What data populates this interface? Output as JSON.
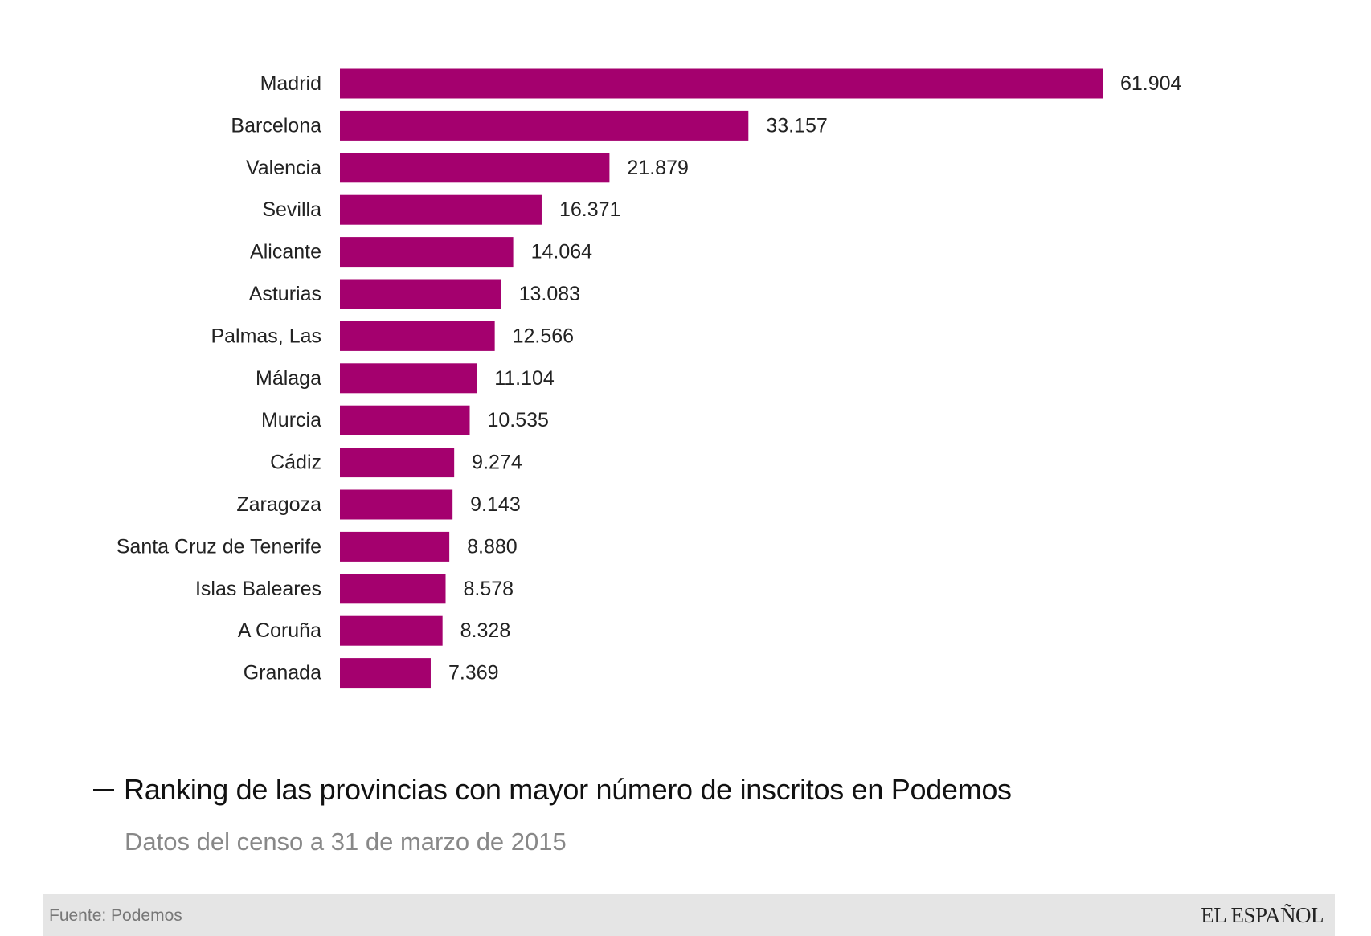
{
  "chart_data": {
    "type": "bar",
    "orientation": "horizontal",
    "title": "Ranking de las provincias con mayor número de inscritos en Podemos",
    "subtitle": "Datos del censo a 31 de marzo de 2015",
    "categories": [
      "Madrid",
      "Barcelona",
      "Valencia",
      "Sevilla",
      "Alicante",
      "Asturias",
      "Palmas, Las",
      "Málaga",
      "Murcia",
      "Cádiz",
      "Zaragoza",
      "Santa Cruz de Tenerife",
      "Islas Baleares",
      "A Coruña",
      "Granada"
    ],
    "values": [
      61904,
      33157,
      21879,
      16371,
      14064,
      13083,
      12566,
      11104,
      10535,
      9274,
      9143,
      8880,
      8578,
      8328,
      7369
    ],
    "value_labels": [
      "61.904",
      "33.157",
      "21.879",
      "16.371",
      "14.064",
      "13.083",
      "12.566",
      "11.104",
      "10.535",
      "9.274",
      "9.143",
      "8.880",
      "8.578",
      "8.328",
      "7.369"
    ],
    "bar_color": "#a4006e",
    "grid": false,
    "legend": "none"
  },
  "footer": {
    "source": "Fuente: Podemos",
    "brand": "EL ESPAÑOL",
    "background": "#e5e5e5"
  }
}
